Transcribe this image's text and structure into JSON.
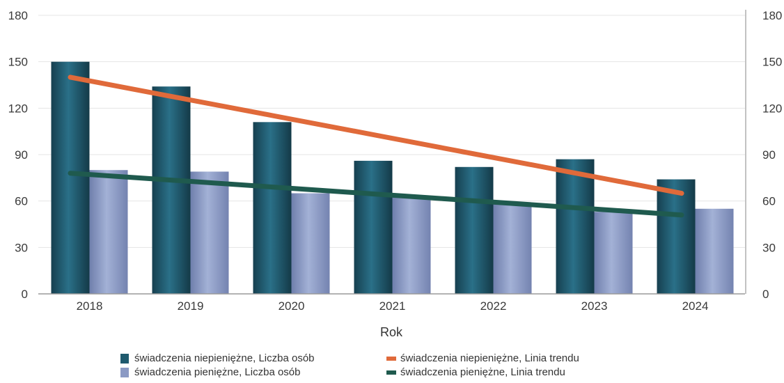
{
  "chart_data": {
    "type": "bar",
    "categories": [
      "2018",
      "2019",
      "2020",
      "2021",
      "2022",
      "2023",
      "2024"
    ],
    "series": [
      {
        "name": "świadczenia niepieniężne, Liczba osób",
        "kind": "bar",
        "color": "#1f5a6e",
        "values": [
          150,
          134,
          111,
          86,
          82,
          87,
          74
        ]
      },
      {
        "name": "świadczenia pieniężne, Liczba osób",
        "kind": "bar",
        "color": "#8b9ac4",
        "values": [
          80,
          79,
          65,
          63,
          58,
          53,
          55
        ]
      },
      {
        "name": "świadczenia niepieniężne, Linia trendu",
        "kind": "line",
        "color": "#e06a3a",
        "values": [
          140,
          127.5,
          115,
          102.5,
          90,
          77.5,
          65
        ]
      },
      {
        "name": "świadczenia pieniężne, Linia trendu",
        "kind": "line",
        "color": "#1f5a4e",
        "values": [
          78,
          73.5,
          69,
          64.5,
          60,
          55.5,
          51
        ]
      }
    ],
    "xlabel": "Rok",
    "ylabel": "",
    "ylim": [
      0,
      180
    ],
    "yticks": [
      0,
      30,
      60,
      90,
      120,
      150,
      180
    ],
    "secondary_ylim": [
      0,
      180
    ],
    "secondary_yticks": [
      0,
      30,
      60,
      90,
      120,
      150,
      180
    ],
    "grid": true,
    "legend_position": "bottom"
  }
}
